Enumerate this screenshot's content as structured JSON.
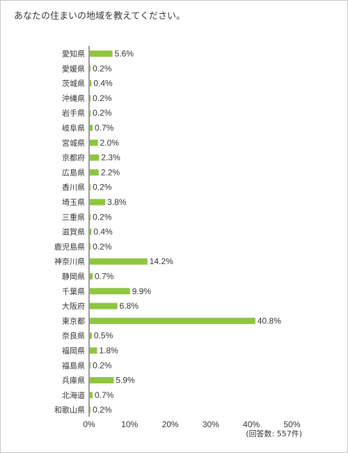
{
  "question": "あなたの住まいの地域を教えてください。",
  "note": "(回答数: 557件)",
  "chart_data": {
    "type": "bar",
    "orientation": "horizontal",
    "categories": [
      "愛知県",
      "愛媛県",
      "茨城県",
      "沖縄県",
      "岩手県",
      "岐阜県",
      "宮城県",
      "京都府",
      "広島県",
      "香川県",
      "埼玉県",
      "三重県",
      "滋賀県",
      "鹿児島県",
      "神奈川県",
      "静岡県",
      "千葉県",
      "大阪府",
      "東京都",
      "奈良県",
      "福岡県",
      "福島県",
      "兵庫県",
      "北海道",
      "和歌山県"
    ],
    "values": [
      5.6,
      0.2,
      0.4,
      0.2,
      0.2,
      0.7,
      2.0,
      2.3,
      2.2,
      0.2,
      3.8,
      0.2,
      0.4,
      0.2,
      14.2,
      0.7,
      9.9,
      6.8,
      40.8,
      0.5,
      1.8,
      0.2,
      5.9,
      0.7,
      0.2
    ],
    "value_labels": [
      "5.6%",
      "0.2%",
      "0.4%",
      "0.2%",
      "0.2%",
      "0.7%",
      "2.0%",
      "2.3%",
      "2.2%",
      "0.2%",
      "3.8%",
      "0.2%",
      "0.4%",
      "0.2%",
      "14.2%",
      "0.7%",
      "9.9%",
      "6.8%",
      "40.8%",
      "0.5%",
      "1.8%",
      "0.2%",
      "5.9%",
      "0.7%",
      "0.2%"
    ],
    "x_ticks": [
      "0%",
      "10%",
      "20%",
      "30%",
      "40%",
      "50%"
    ],
    "xlim": [
      0,
      50
    ],
    "bar_color": "#8dc63f",
    "grid": false
  }
}
